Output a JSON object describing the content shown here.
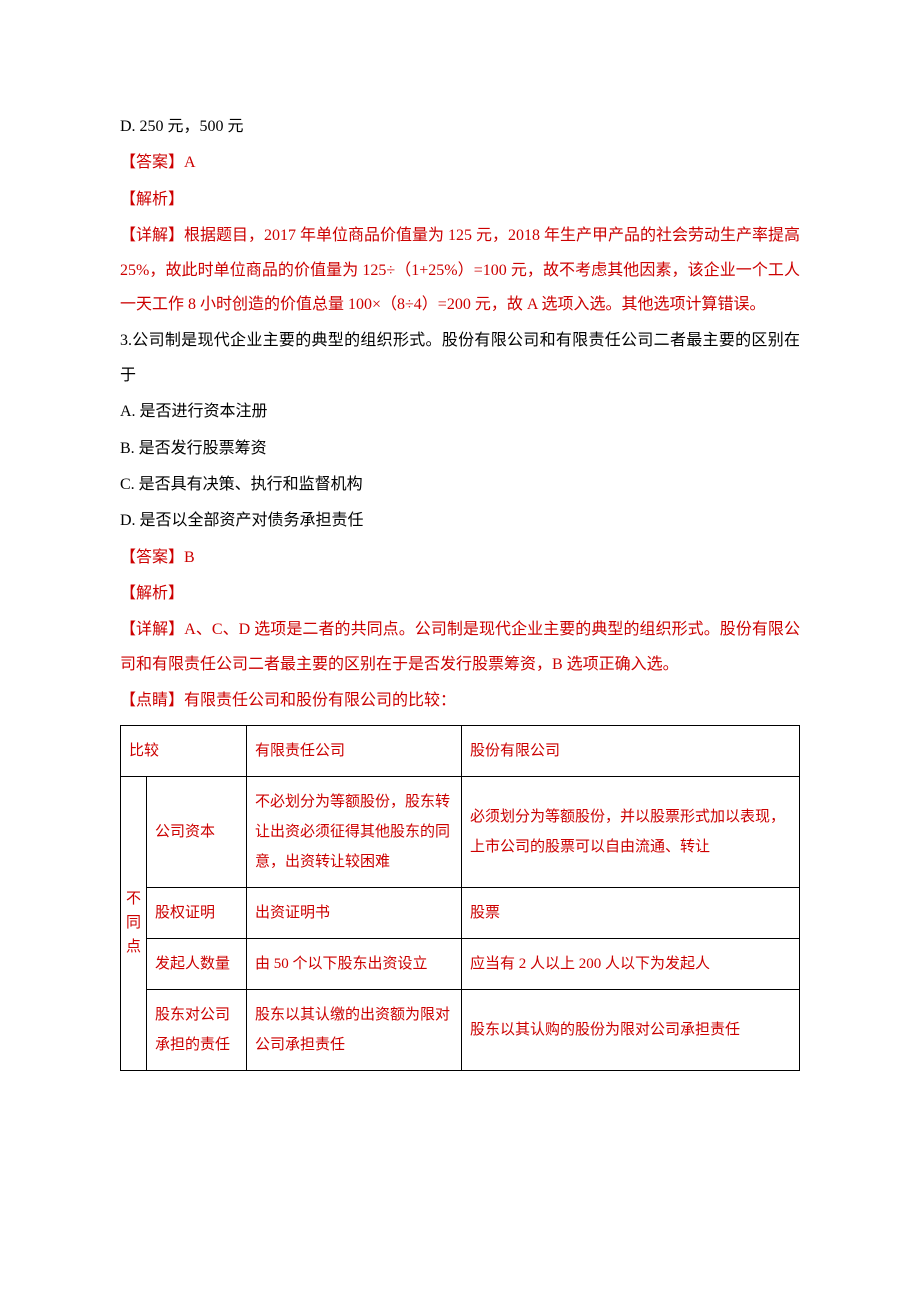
{
  "colors": {
    "accent": "#cc0000",
    "text": "#000000",
    "border": "#000000",
    "bg": "#ffffff"
  },
  "pretext": {
    "optD": "D. 250 元，500 元",
    "ans": "【答案】A",
    "jiexi": "【解析】",
    "detail": "【详解】根据题目，2017 年单位商品价值量为 125 元，2018 年生产甲产品的社会劳动生产率提高 25%，故此时单位商品的价值量为 125÷（1+25%）=100 元，故不考虑其他因素，该企业一个工人一天工作 8 小时创造的价值总量 100×（8÷4）=200 元，故 A 选项入选。其他选项计算错误。"
  },
  "q3": {
    "stem": "3.公司制是现代企业主要的典型的组织形式。股份有限公司和有限责任公司二者最主要的区别在于",
    "optA": "A. 是否进行资本注册",
    "optB": "B. 是否发行股票筹资",
    "optC": "C. 是否具有决策、执行和监督机构",
    "optD": "D. 是否以全部资产对债务承担责任",
    "ans": "【答案】B",
    "jiexi": "【解析】",
    "detail": "【详解】A、C、D 选项是二者的共同点。公司制是现代企业主要的典型的组织形式。股份有限公司和有限责任公司二者最主要的区别在于是否发行股票筹资，B 选项正确入选。",
    "dianjing": "【点睛】有限责任公司和股份有限公司的比较："
  },
  "table": {
    "head": {
      "c0": "比较",
      "c1": "有限责任公司",
      "c2": "股份有限公司"
    },
    "vlabel": "不同点",
    "rows": [
      {
        "label": "公司资本",
        "a": "不必划分为等额股份，股东转让出资必须征得其他股东的同意，出资转让较困难",
        "b": "必须划分为等额股份，并以股票形式加以表现，上市公司的股票可以自由流通、转让"
      },
      {
        "label": "股权证明",
        "a": "出资证明书",
        "b": "股票"
      },
      {
        "label": "发起人数量",
        "a": "由 50 个以下股东出资设立",
        "b": "应当有 2 人以上 200 人以下为发起人"
      },
      {
        "label": "股东对公司承担的责任",
        "a": "股东以其认缴的出资额为限对公司承担责任",
        "b": "股东以其认购的股份为限对公司承担责任"
      }
    ]
  }
}
